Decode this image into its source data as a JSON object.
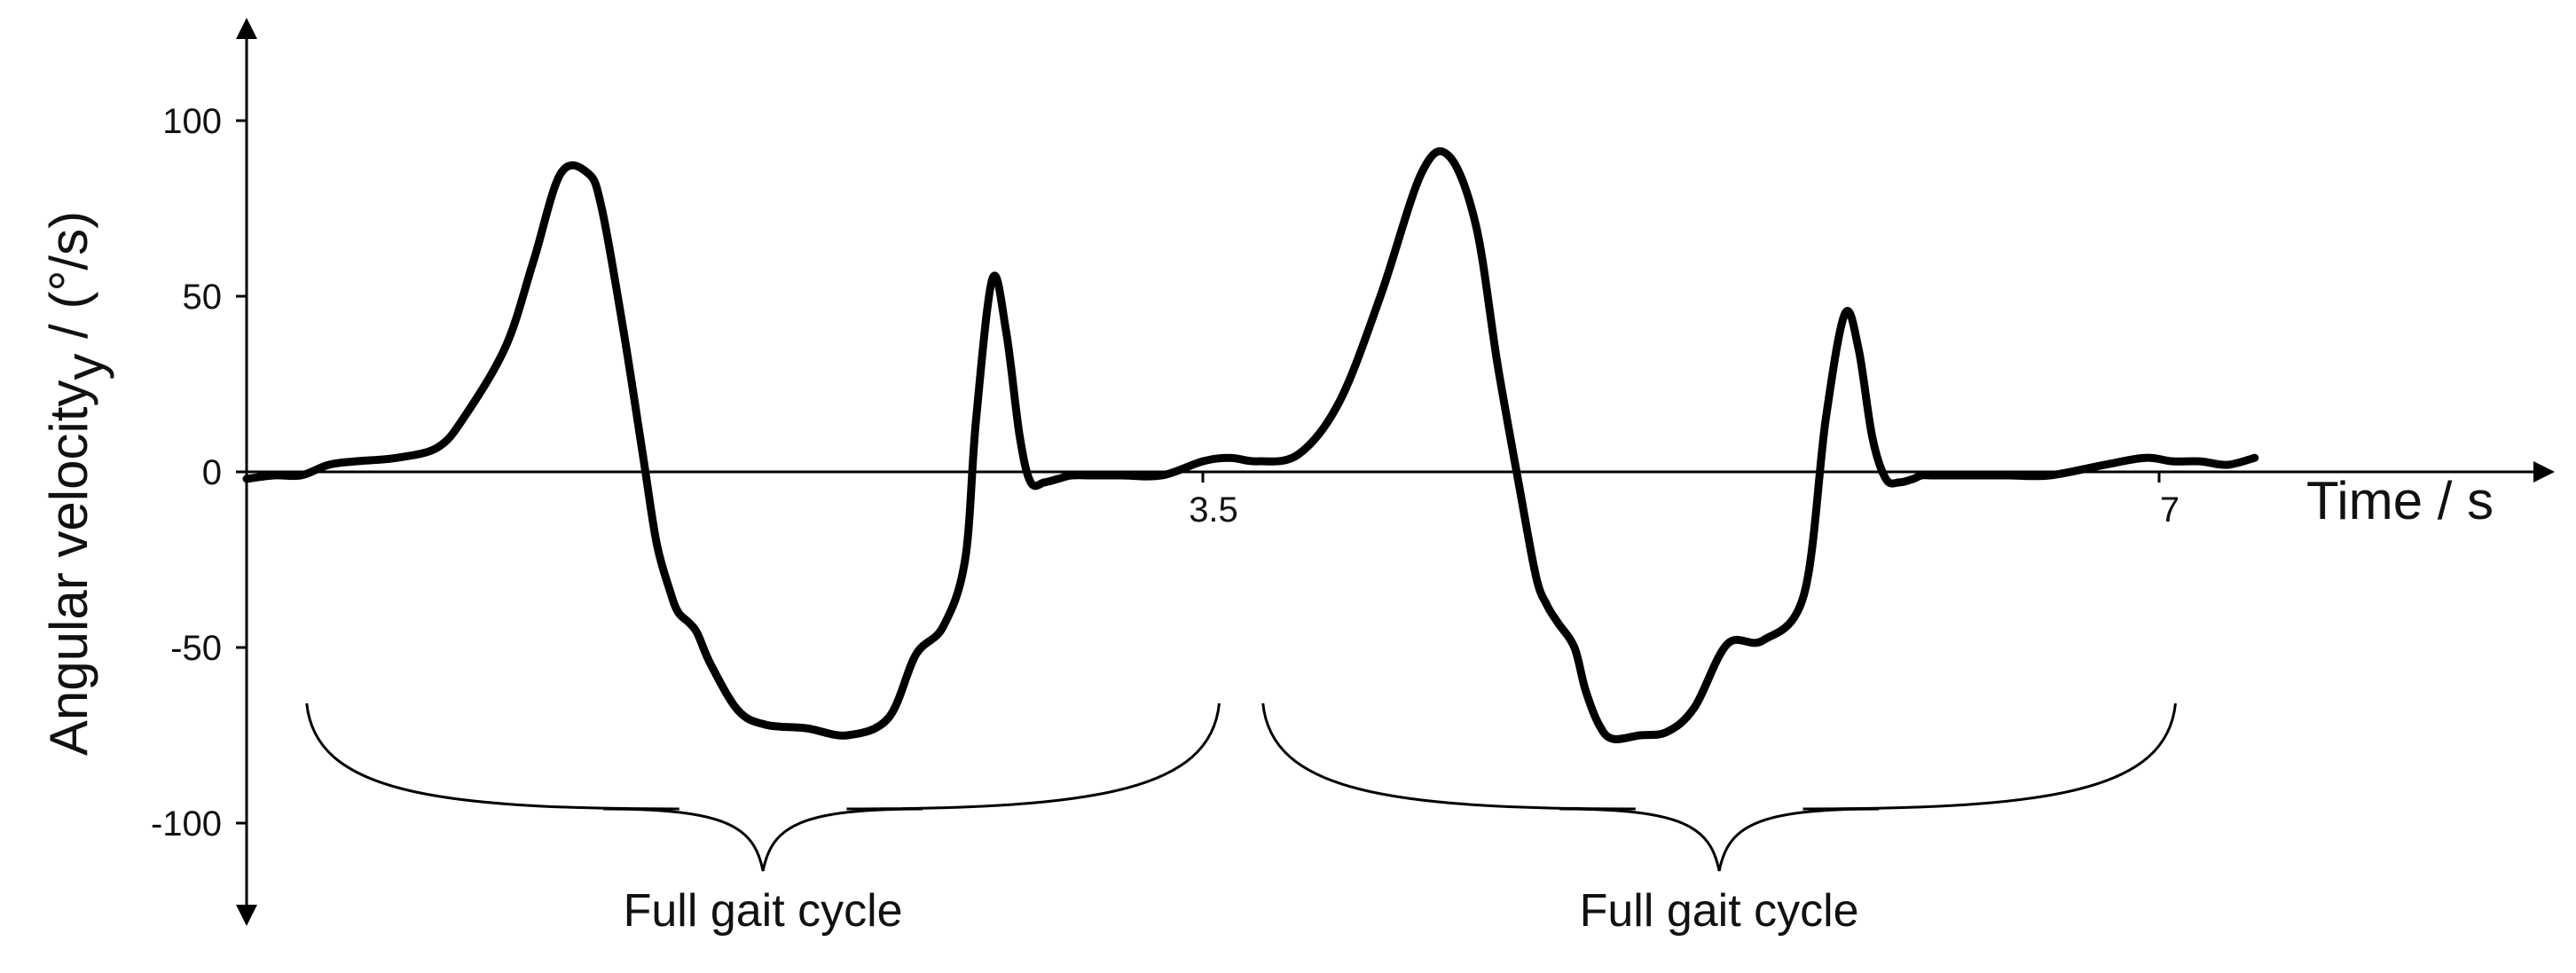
{
  "chart_data": {
    "type": "line",
    "title": "",
    "xlabel": "Time / s",
    "ylabel_main": "Angular velocity",
    "ylabel_subscript": "y",
    "ylabel_unit": " / (°/s)",
    "xlim": [
      0,
      7.2
    ],
    "ylim": [
      -125,
      125
    ],
    "x_ticks": [
      {
        "value": 3.5,
        "label": "3.5"
      },
      {
        "value": 7,
        "label": "7"
      }
    ],
    "y_ticks": [
      {
        "value": 100,
        "label": "100"
      },
      {
        "value": 50,
        "label": "50"
      },
      {
        "value": 0,
        "label": "0"
      },
      {
        "value": -50,
        "label": "-50"
      },
      {
        "value": -100,
        "label": "-100"
      }
    ],
    "grid": false,
    "line_color": "#000000",
    "series": [
      {
        "x": [
          0.0,
          0.1,
          0.2,
          0.3,
          0.4,
          0.55,
          0.7,
          0.8,
          0.95,
          1.05,
          1.15,
          1.25,
          1.3,
          1.38,
          1.45,
          1.5,
          1.55,
          1.58,
          1.62,
          1.65,
          1.7,
          1.8,
          1.9,
          2.05,
          2.2,
          2.35,
          2.45,
          2.55,
          2.63,
          2.67,
          2.73,
          2.78,
          2.83,
          2.87,
          2.92,
          2.97,
          3.02,
          3.1,
          3.2,
          3.35,
          3.5,
          3.6,
          3.7,
          3.85,
          4.0,
          4.15,
          4.3,
          4.4,
          4.5,
          4.58,
          4.66,
          4.72,
          4.76,
          4.8,
          4.86,
          4.9,
          4.95,
          5.0,
          5.1,
          5.2,
          5.3,
          5.42,
          5.55,
          5.7,
          5.78,
          5.85,
          5.9,
          5.95,
          6.0,
          6.05,
          6.1,
          6.13,
          6.17,
          6.22,
          6.28,
          6.35,
          6.45,
          6.6,
          6.8,
          6.95,
          7.05,
          7.15,
          7.25,
          7.35
        ],
        "y": [
          -2,
          -1,
          -1,
          2,
          3,
          4,
          7,
          16,
          36,
          60,
          85,
          85,
          75,
          40,
          5,
          -20,
          -34,
          -40,
          -43,
          -46,
          -55,
          -68,
          -72,
          -73,
          -75,
          -70,
          -52,
          -44,
          -25,
          15,
          55,
          40,
          10,
          -3,
          -3,
          -2,
          -1,
          -1,
          -1,
          -1,
          3,
          4,
          3,
          5,
          20,
          50,
          85,
          90,
          70,
          30,
          -5,
          -30,
          -38,
          -43,
          -50,
          -62,
          -72,
          -76,
          -75,
          -74,
          -67,
          -49,
          -48,
          -35,
          15,
          45,
          35,
          10,
          -2,
          -3,
          -2,
          -1,
          -1,
          -1,
          -1,
          -1,
          -1,
          -1,
          2,
          4,
          3,
          3,
          2,
          4
        ]
      }
    ],
    "annotations": [
      {
        "label": "Full gait cycle",
        "x_start": 0.22,
        "x_end": 3.56
      },
      {
        "label": "Full gait cycle",
        "x_start": 3.72,
        "x_end": 7.06
      }
    ]
  }
}
